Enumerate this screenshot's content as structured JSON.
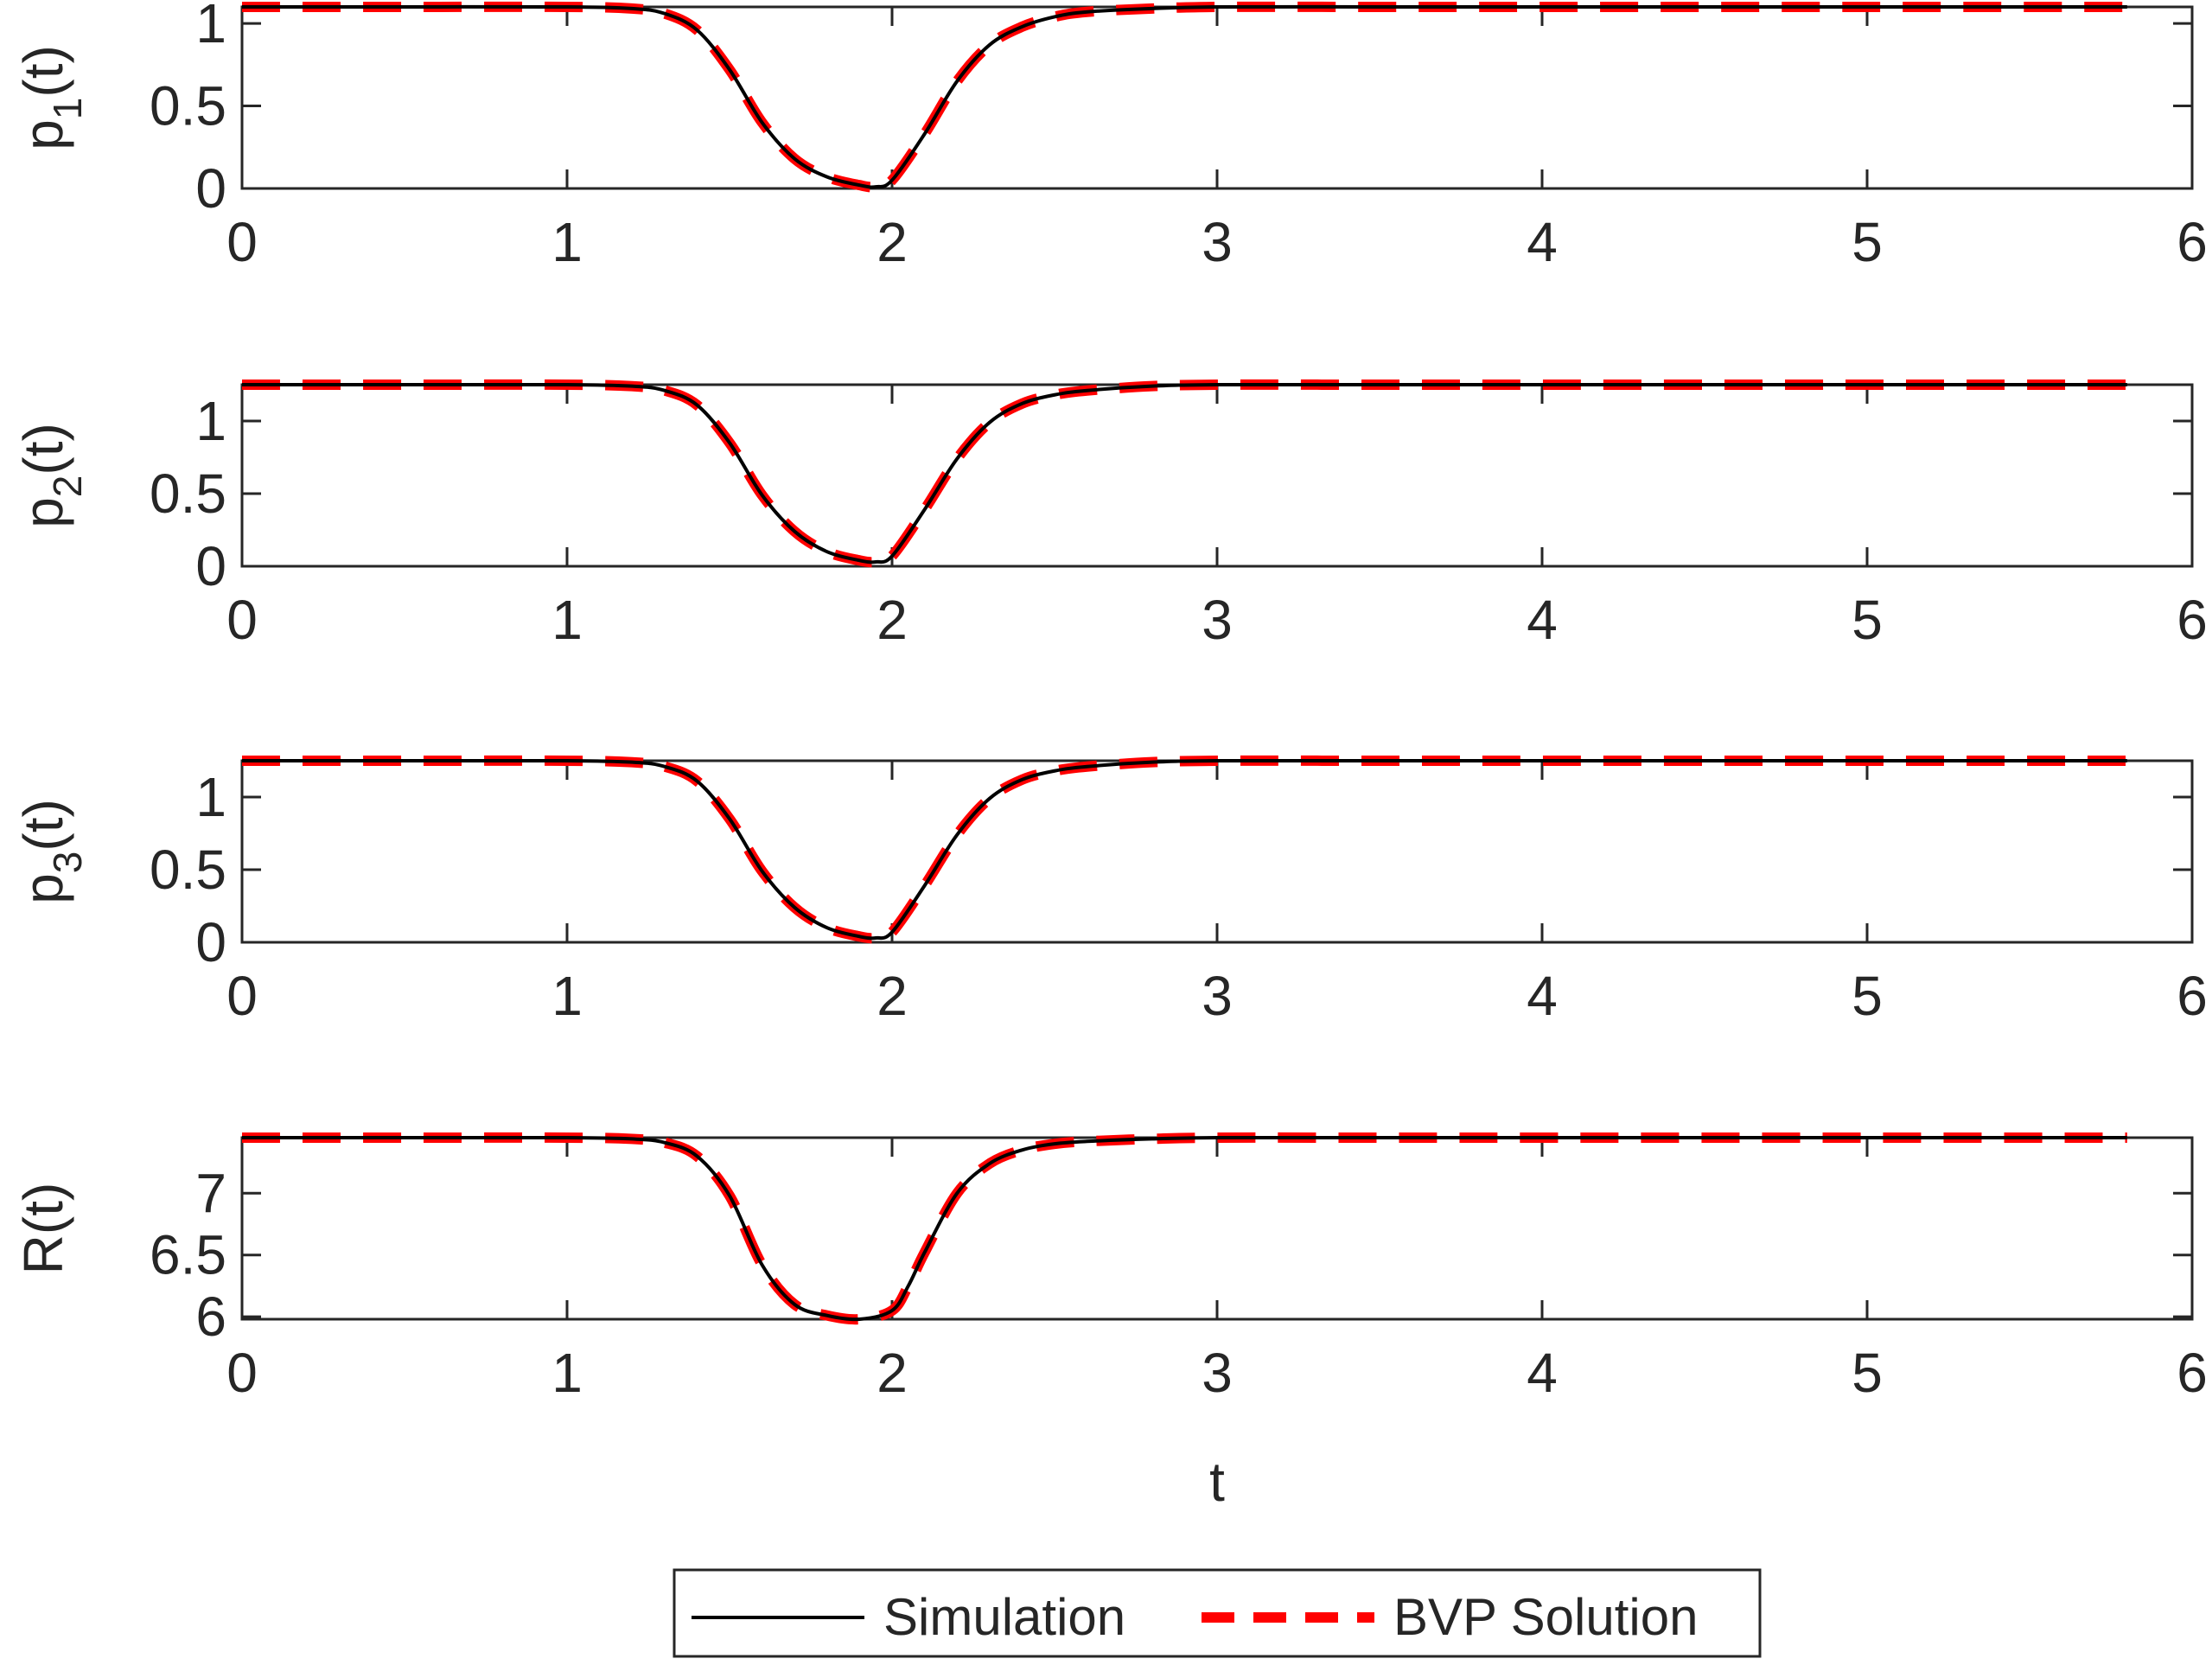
{
  "chart_data": [
    {
      "type": "line",
      "ylabel": {
        "base": "p",
        "sub": "1",
        "suffix": "(t)"
      },
      "xlabel": "",
      "xlim": [
        0,
        6
      ],
      "ylim": [
        0,
        1.1
      ],
      "xticks": [
        "0",
        "1",
        "2",
        "3",
        "4",
        "5",
        "6"
      ],
      "yticks": [
        "0",
        "0.5",
        "1"
      ],
      "baseline": 1.1,
      "min": {
        "t": 1.95,
        "value": 0.01
      },
      "series": [
        {
          "name": "Simulation",
          "color": "#000000",
          "style": "solid",
          "x": [
            0,
            0.5,
            1.0,
            1.2,
            1.3,
            1.4,
            1.5,
            1.6,
            1.7,
            1.8,
            1.9,
            1.95,
            2.0,
            2.1,
            2.2,
            2.3,
            2.4,
            2.5,
            2.6,
            2.8,
            3.0,
            3.5,
            4.0,
            5.0,
            5.8
          ],
          "values": [
            1.1,
            1.1,
            1.1,
            1.09,
            1.06,
            0.96,
            0.72,
            0.4,
            0.18,
            0.07,
            0.02,
            0.01,
            0.05,
            0.33,
            0.65,
            0.87,
            0.98,
            1.04,
            1.07,
            1.09,
            1.1,
            1.1,
            1.1,
            1.1,
            1.1
          ]
        },
        {
          "name": "BVP Solution",
          "color": "#ff0000",
          "style": "dashed",
          "x": [
            0,
            0.5,
            1.0,
            1.2,
            1.3,
            1.4,
            1.5,
            1.6,
            1.7,
            1.8,
            1.9,
            1.95,
            2.0,
            2.1,
            2.2,
            2.3,
            2.4,
            2.5,
            2.6,
            2.8,
            3.0,
            3.5,
            4.0,
            5.0,
            5.8
          ],
          "values": [
            1.1,
            1.1,
            1.1,
            1.09,
            1.06,
            0.96,
            0.72,
            0.4,
            0.18,
            0.07,
            0.02,
            0.01,
            0.05,
            0.33,
            0.65,
            0.87,
            0.98,
            1.04,
            1.07,
            1.09,
            1.1,
            1.1,
            1.1,
            1.1,
            1.1
          ]
        }
      ]
    },
    {
      "type": "line",
      "ylabel": {
        "base": "p",
        "sub": "2",
        "suffix": "(t)"
      },
      "xlabel": "",
      "xlim": [
        0,
        6
      ],
      "ylim": [
        0,
        1.25
      ],
      "xticks": [
        "0",
        "1",
        "2",
        "3",
        "4",
        "5",
        "6"
      ],
      "yticks": [
        "0",
        "0.5",
        "1"
      ],
      "baseline": 1.25,
      "min": {
        "t": 1.95,
        "value": 0.03
      },
      "series": [
        {
          "name": "Simulation",
          "color": "#000000",
          "style": "solid",
          "x": [
            0,
            0.5,
            1.0,
            1.2,
            1.3,
            1.4,
            1.5,
            1.6,
            1.7,
            1.8,
            1.9,
            1.95,
            2.0,
            2.1,
            2.2,
            2.3,
            2.4,
            2.5,
            2.6,
            2.8,
            3.0,
            3.5,
            4.0,
            5.0,
            5.8
          ],
          "values": [
            1.25,
            1.25,
            1.25,
            1.24,
            1.21,
            1.11,
            0.85,
            0.49,
            0.24,
            0.1,
            0.04,
            0.03,
            0.07,
            0.39,
            0.74,
            0.99,
            1.12,
            1.18,
            1.21,
            1.24,
            1.25,
            1.25,
            1.25,
            1.25,
            1.25
          ]
        },
        {
          "name": "BVP Solution",
          "color": "#ff0000",
          "style": "dashed",
          "x": [
            0,
            0.5,
            1.0,
            1.2,
            1.3,
            1.4,
            1.5,
            1.6,
            1.7,
            1.8,
            1.9,
            1.95,
            2.0,
            2.1,
            2.2,
            2.3,
            2.4,
            2.5,
            2.6,
            2.8,
            3.0,
            3.5,
            4.0,
            5.0,
            5.8
          ],
          "values": [
            1.25,
            1.25,
            1.25,
            1.24,
            1.21,
            1.11,
            0.85,
            0.49,
            0.24,
            0.1,
            0.04,
            0.03,
            0.07,
            0.39,
            0.74,
            0.99,
            1.12,
            1.18,
            1.21,
            1.24,
            1.25,
            1.25,
            1.25,
            1.25,
            1.25
          ]
        }
      ]
    },
    {
      "type": "line",
      "ylabel": {
        "base": "p",
        "sub": "3",
        "suffix": "(t)"
      },
      "xlabel": "",
      "xlim": [
        0,
        6
      ],
      "ylim": [
        0,
        1.25
      ],
      "xticks": [
        "0",
        "1",
        "2",
        "3",
        "4",
        "5",
        "6"
      ],
      "yticks": [
        "0",
        "0.5",
        "1"
      ],
      "baseline": 1.25,
      "min": {
        "t": 1.95,
        "value": 0.03
      },
      "series": [
        {
          "name": "Simulation",
          "color": "#000000",
          "style": "solid",
          "x": [
            0,
            0.5,
            1.0,
            1.2,
            1.3,
            1.4,
            1.5,
            1.6,
            1.7,
            1.8,
            1.9,
            1.95,
            2.0,
            2.1,
            2.2,
            2.3,
            2.4,
            2.5,
            2.6,
            2.8,
            3.0,
            3.5,
            4.0,
            5.0,
            5.8
          ],
          "values": [
            1.25,
            1.25,
            1.25,
            1.24,
            1.21,
            1.11,
            0.85,
            0.49,
            0.24,
            0.1,
            0.04,
            0.03,
            0.07,
            0.39,
            0.74,
            0.99,
            1.12,
            1.18,
            1.21,
            1.24,
            1.25,
            1.25,
            1.25,
            1.25,
            1.25
          ]
        },
        {
          "name": "BVP Solution",
          "color": "#ff0000",
          "style": "dashed",
          "x": [
            0,
            0.5,
            1.0,
            1.2,
            1.3,
            1.4,
            1.5,
            1.6,
            1.7,
            1.8,
            1.9,
            1.95,
            2.0,
            2.1,
            2.2,
            2.3,
            2.4,
            2.5,
            2.6,
            2.8,
            3.0,
            3.5,
            4.0,
            5.0,
            5.8
          ],
          "values": [
            1.25,
            1.25,
            1.25,
            1.24,
            1.21,
            1.11,
            0.85,
            0.49,
            0.24,
            0.1,
            0.04,
            0.03,
            0.07,
            0.39,
            0.74,
            0.99,
            1.12,
            1.18,
            1.21,
            1.24,
            1.25,
            1.25,
            1.25,
            1.25,
            1.25
          ]
        }
      ]
    },
    {
      "type": "line",
      "ylabel": {
        "base": "R(t)",
        "sub": "",
        "suffix": ""
      },
      "xlabel": "t",
      "xlim": [
        0,
        6
      ],
      "ylim": [
        5.98,
        7.45
      ],
      "xticks": [
        "0",
        "1",
        "2",
        "3",
        "4",
        "5",
        "6"
      ],
      "yticks": [
        "6",
        "6.5",
        "7"
      ],
      "baseline": 7.45,
      "min": {
        "t": 1.9,
        "value": 5.98
      },
      "series": [
        {
          "name": "Simulation",
          "color": "#000000",
          "style": "solid",
          "x": [
            0,
            0.5,
            1.0,
            1.2,
            1.3,
            1.4,
            1.5,
            1.6,
            1.7,
            1.8,
            1.9,
            2.0,
            2.05,
            2.1,
            2.2,
            2.3,
            2.4,
            2.5,
            2.6,
            2.8,
            3.0,
            3.5,
            4.0,
            5.0,
            5.8
          ],
          "values": [
            7.45,
            7.45,
            7.45,
            7.44,
            7.41,
            7.3,
            6.98,
            6.42,
            6.1,
            6.01,
            5.98,
            6.05,
            6.25,
            6.52,
            7.0,
            7.24,
            7.35,
            7.4,
            7.42,
            7.44,
            7.45,
            7.45,
            7.45,
            7.45,
            7.45
          ]
        },
        {
          "name": "BVP Solution",
          "color": "#ff0000",
          "style": "dashed",
          "x": [
            0,
            0.5,
            1.0,
            1.2,
            1.3,
            1.4,
            1.5,
            1.6,
            1.7,
            1.8,
            1.9,
            2.0,
            2.05,
            2.1,
            2.2,
            2.3,
            2.4,
            2.5,
            2.6,
            2.8,
            3.0,
            3.5,
            4.0,
            5.0,
            5.8
          ],
          "values": [
            7.45,
            7.45,
            7.45,
            7.44,
            7.41,
            7.3,
            6.98,
            6.42,
            6.1,
            6.01,
            5.98,
            6.05,
            6.25,
            6.52,
            7.0,
            7.24,
            7.35,
            7.4,
            7.42,
            7.44,
            7.45,
            7.45,
            7.45,
            7.45,
            7.45
          ]
        }
      ]
    }
  ],
  "legend": {
    "placement": "bottom-center",
    "items": [
      {
        "label": "Simulation",
        "color": "#000000",
        "style": "solid"
      },
      {
        "label": "BVP Solution",
        "color": "#ff0000",
        "style": "dashed"
      }
    ]
  }
}
